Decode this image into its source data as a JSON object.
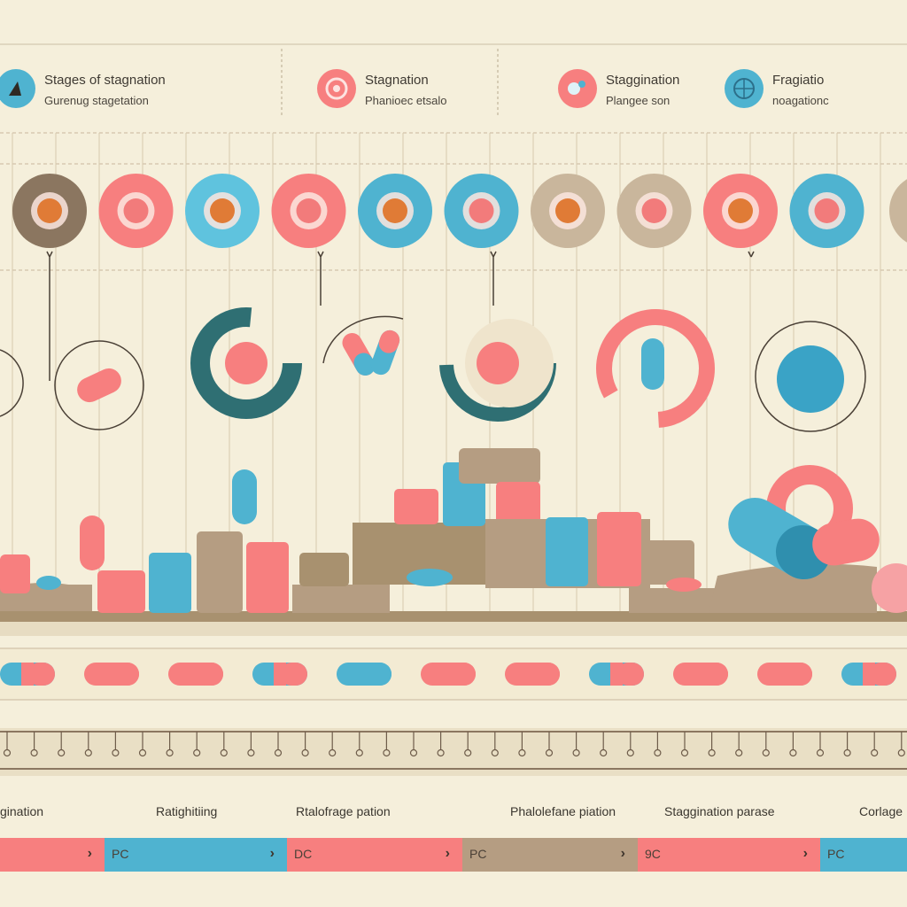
{
  "colors": {
    "background": "#f5efdb",
    "pink": "#f77f7f",
    "blue": "#4fb3d0",
    "teal": "#2f6f73",
    "tan": "#b59d82",
    "brown": "#8b7660"
  },
  "legend": [
    {
      "title": "Stages of stagnation",
      "subtitle": "Gurenug stagetation",
      "icon": "triangle-icon",
      "color": "#4fb3d0"
    },
    {
      "title": "Stagnation",
      "subtitle": "Phanioec etsalo",
      "icon": "target-icon",
      "color": "#f77f7f"
    },
    {
      "title": "Staggination",
      "subtitle": "Plangee son",
      "icon": "dot-icon",
      "color": "#f77f7f"
    },
    {
      "title": "Fragiatio",
      "subtitle": "noagationc",
      "icon": "globe-icon",
      "color": "#4fb3d0"
    }
  ],
  "stages": [
    {
      "label": "gination"
    },
    {
      "label": "Ratighitiing"
    },
    {
      "label": "Rtalofrage pation"
    },
    {
      "label": "Phalolefane piation"
    },
    {
      "label": "Staggination parase"
    },
    {
      "label": "Corlage"
    }
  ],
  "codes": [
    {
      "text": "",
      "icon": "chevron-right-icon",
      "color": "#f77f7f"
    },
    {
      "text": "PC",
      "icon": "chevron-right-icon",
      "color": "#4fb3d0"
    },
    {
      "text": "DC",
      "icon": "chevron-right-icon",
      "color": "#f77f7f"
    },
    {
      "text": "PC",
      "icon": "chevron-right-icon",
      "color": "#b59d82"
    },
    {
      "text": "9C",
      "icon": "chevron-right-icon",
      "color": "#f77f7f"
    },
    {
      "text": "PC",
      "icon": "chevron-right-icon",
      "color": "#4fb3d0"
    }
  ],
  "icon_row": [
    {
      "icon": "orange-cell-icon",
      "bg": "#8b7660"
    },
    {
      "icon": "lungs-icon",
      "bg": "#f77f7f"
    },
    {
      "icon": "molecule-icon",
      "bg": "#5fc3de"
    },
    {
      "icon": "blue-pill-disc-icon",
      "bg": "#f77f7f"
    },
    {
      "icon": "pink-blob-icon",
      "bg": "#4fb3d0"
    },
    {
      "icon": "pink-bulb-icon",
      "bg": "#4fb3d0"
    },
    {
      "icon": "tan-sphere-icon",
      "bg": "#c9b69c"
    },
    {
      "icon": "stethoscope-icon",
      "bg": "#c9b69c"
    },
    {
      "icon": "pink-cell-icon",
      "bg": "#f77f7f"
    },
    {
      "icon": "flower-cell-icon",
      "bg": "#4fb3d0"
    }
  ],
  "pill_row": [
    {
      "left": "#4fb3d0",
      "right": "#f77f7f"
    },
    {
      "left": "#f77f7f",
      "right": "#f77f7f"
    },
    {
      "left": "#f77f7f",
      "right": "#f77f7f"
    },
    {
      "left": "#4fb3d0",
      "right": "#f77f7f"
    },
    {
      "left": "#4fb3d0",
      "right": "#4fb3d0"
    },
    {
      "left": "#f77f7f",
      "right": "#f77f7f"
    },
    {
      "left": "#f77f7f",
      "right": "#f77f7f"
    },
    {
      "left": "#4fb3d0",
      "right": "#f77f7f"
    },
    {
      "left": "#f77f7f",
      "right": "#f77f7f"
    },
    {
      "left": "#f77f7f",
      "right": "#f77f7f"
    },
    {
      "left": "#4fb3d0",
      "right": "#f77f7f"
    }
  ]
}
